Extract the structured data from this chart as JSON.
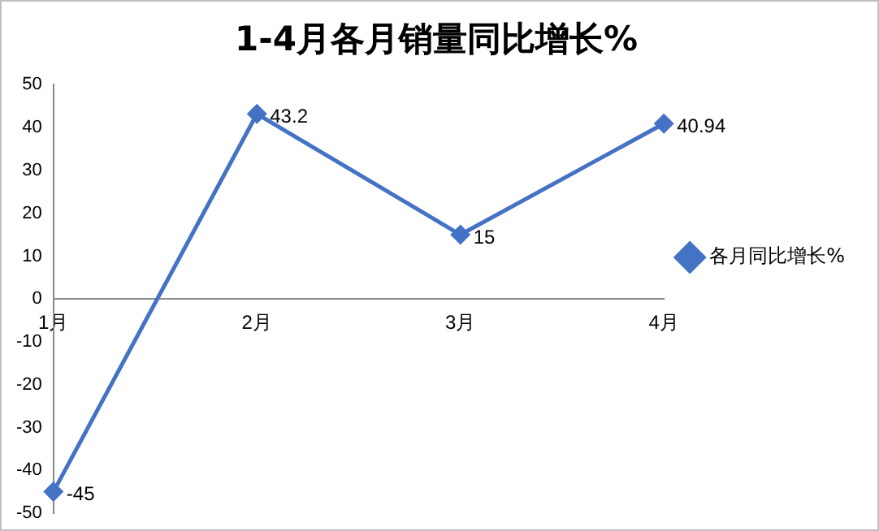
{
  "chart_data": {
    "type": "line",
    "title": "1-4月各月销量同比增长%",
    "categories": [
      "1月",
      "2月",
      "3月",
      "4月"
    ],
    "series": [
      {
        "name": "各月同比增长%",
        "color": "#4472c4",
        "values": [
          -45,
          43.2,
          15,
          40.94
        ]
      }
    ],
    "ylim": [
      -50,
      50
    ],
    "yticks": [
      -50,
      -40,
      -30,
      -20,
      -10,
      0,
      10,
      20,
      30,
      40,
      50
    ],
    "grid": false,
    "legend": "right",
    "marker": "diamond",
    "line_style": "solid",
    "data_labels": true
  }
}
